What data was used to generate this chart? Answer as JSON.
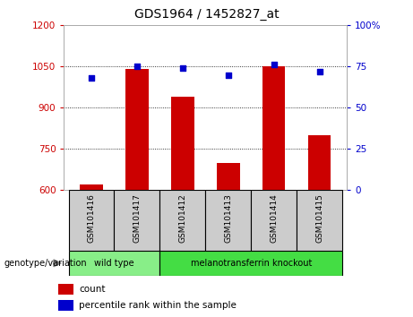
{
  "title": "GDS1964 / 1452827_at",
  "samples": [
    "GSM101416",
    "GSM101417",
    "GSM101412",
    "GSM101413",
    "GSM101414",
    "GSM101415"
  ],
  "bar_values": [
    622,
    1040,
    940,
    700,
    1050,
    800
  ],
  "percentile_values": [
    68,
    75,
    74,
    70,
    76,
    72
  ],
  "ylim_left": [
    600,
    1200
  ],
  "ylim_right": [
    0,
    100
  ],
  "yticks_left": [
    600,
    750,
    900,
    1050,
    1200
  ],
  "yticks_right": [
    0,
    25,
    50,
    75,
    100
  ],
  "bar_color": "#cc0000",
  "dot_color": "#0000cc",
  "bar_width": 0.5,
  "groups": [
    {
      "label": "wild type",
      "indices": [
        0,
        1
      ],
      "color": "#88ee88"
    },
    {
      "label": "melanotransferrin knockout",
      "indices": [
        2,
        3,
        4,
        5
      ],
      "color": "#44dd44"
    }
  ],
  "group_label": "genotype/variation",
  "legend_items": [
    {
      "label": "count",
      "color": "#cc0000"
    },
    {
      "label": "percentile rank within the sample",
      "color": "#0000cc"
    }
  ],
  "bg_color": "#ffffff",
  "plot_bg_color": "#ffffff",
  "tick_label_color_left": "#cc0000",
  "tick_label_color_right": "#0000cc",
  "sample_bg_color": "#cccccc",
  "right_tick_labels": [
    "0",
    "25",
    "50",
    "75",
    "100%"
  ]
}
